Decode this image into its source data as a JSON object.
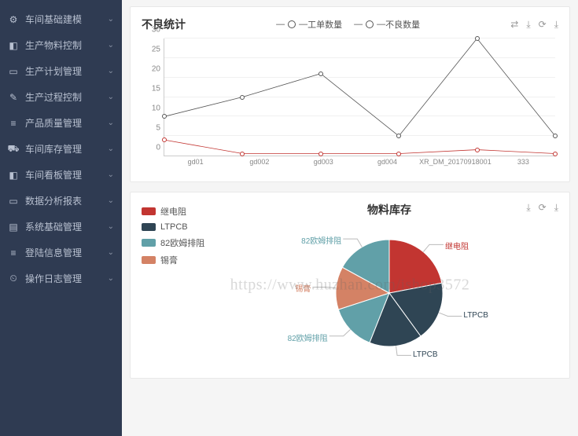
{
  "sidebar": {
    "items": [
      {
        "icon": "⚙",
        "label": "车间基础建模"
      },
      {
        "icon": "◧",
        "label": "生产物料控制"
      },
      {
        "icon": "▭",
        "label": "生产计划管理"
      },
      {
        "icon": "✎",
        "label": "生产过程控制"
      },
      {
        "icon": "≡",
        "label": "产品质量管理"
      },
      {
        "icon": "⛟",
        "label": "车间库存管理"
      },
      {
        "icon": "◧",
        "label": "车间看板管理"
      },
      {
        "icon": "▭",
        "label": "数据分析报表"
      },
      {
        "icon": "▤",
        "label": "系统基础管理"
      },
      {
        "icon": "≡",
        "label": "登陆信息管理"
      },
      {
        "icon": "⏲",
        "label": "操作日志管理"
      }
    ]
  },
  "defect_chart": {
    "title": "不良统计",
    "type": "line",
    "legend": [
      "工单数量",
      "不良数量"
    ],
    "categories": [
      "gd01",
      "gd002",
      "gd003",
      "gd004",
      "XR_DM_20170918001",
      "333"
    ],
    "series": [
      {
        "name": "工单数量",
        "color": "#555555",
        "values": [
          10,
          15,
          21,
          5,
          30,
          5
        ]
      },
      {
        "name": "不良数量",
        "color": "#c23531",
        "values": [
          4,
          0.5,
          0.5,
          0.5,
          1.5,
          0.5
        ]
      }
    ],
    "ylim": [
      0,
      30
    ],
    "ytick_step": 5,
    "background_color": "#ffffff",
    "grid_color": "#f0f0f0",
    "label_fontsize": 10,
    "title_fontsize": 14,
    "marker": "circle",
    "marker_size": 6,
    "line_width": 1.5
  },
  "stock_chart": {
    "title": "物料库存",
    "type": "pie",
    "legend_items": [
      {
        "label": "继电阻",
        "color": "#c23531"
      },
      {
        "label": "LTPCB",
        "color": "#2f4554"
      },
      {
        "label": "82欧姆排阻",
        "color": "#61a0a8"
      },
      {
        "label": "锡膏",
        "color": "#d48265"
      }
    ],
    "slices": [
      {
        "label": "继电阻",
        "color": "#c23531",
        "value": 22
      },
      {
        "label": "LTPCB",
        "color": "#2f4554",
        "value": 18
      },
      {
        "label": "LTPCB",
        "color": "#2f4554",
        "value": 16
      },
      {
        "label": "82欧姆排阻",
        "color": "#61a0a8",
        "value": 14
      },
      {
        "label": "锡膏",
        "color": "#d48265",
        "value": 13
      },
      {
        "label": "82欧姆排阻",
        "color": "#61a0a8",
        "value": 17
      }
    ],
    "background_color": "#ffffff",
    "label_fontsize": 10,
    "title_fontsize": 14,
    "radius": 68
  },
  "tools": {
    "switch": "⇄",
    "export": "⤓",
    "refresh": "⟳",
    "download": "⤓"
  },
  "watermark": "https://www.huzhan.com/ishop3572"
}
